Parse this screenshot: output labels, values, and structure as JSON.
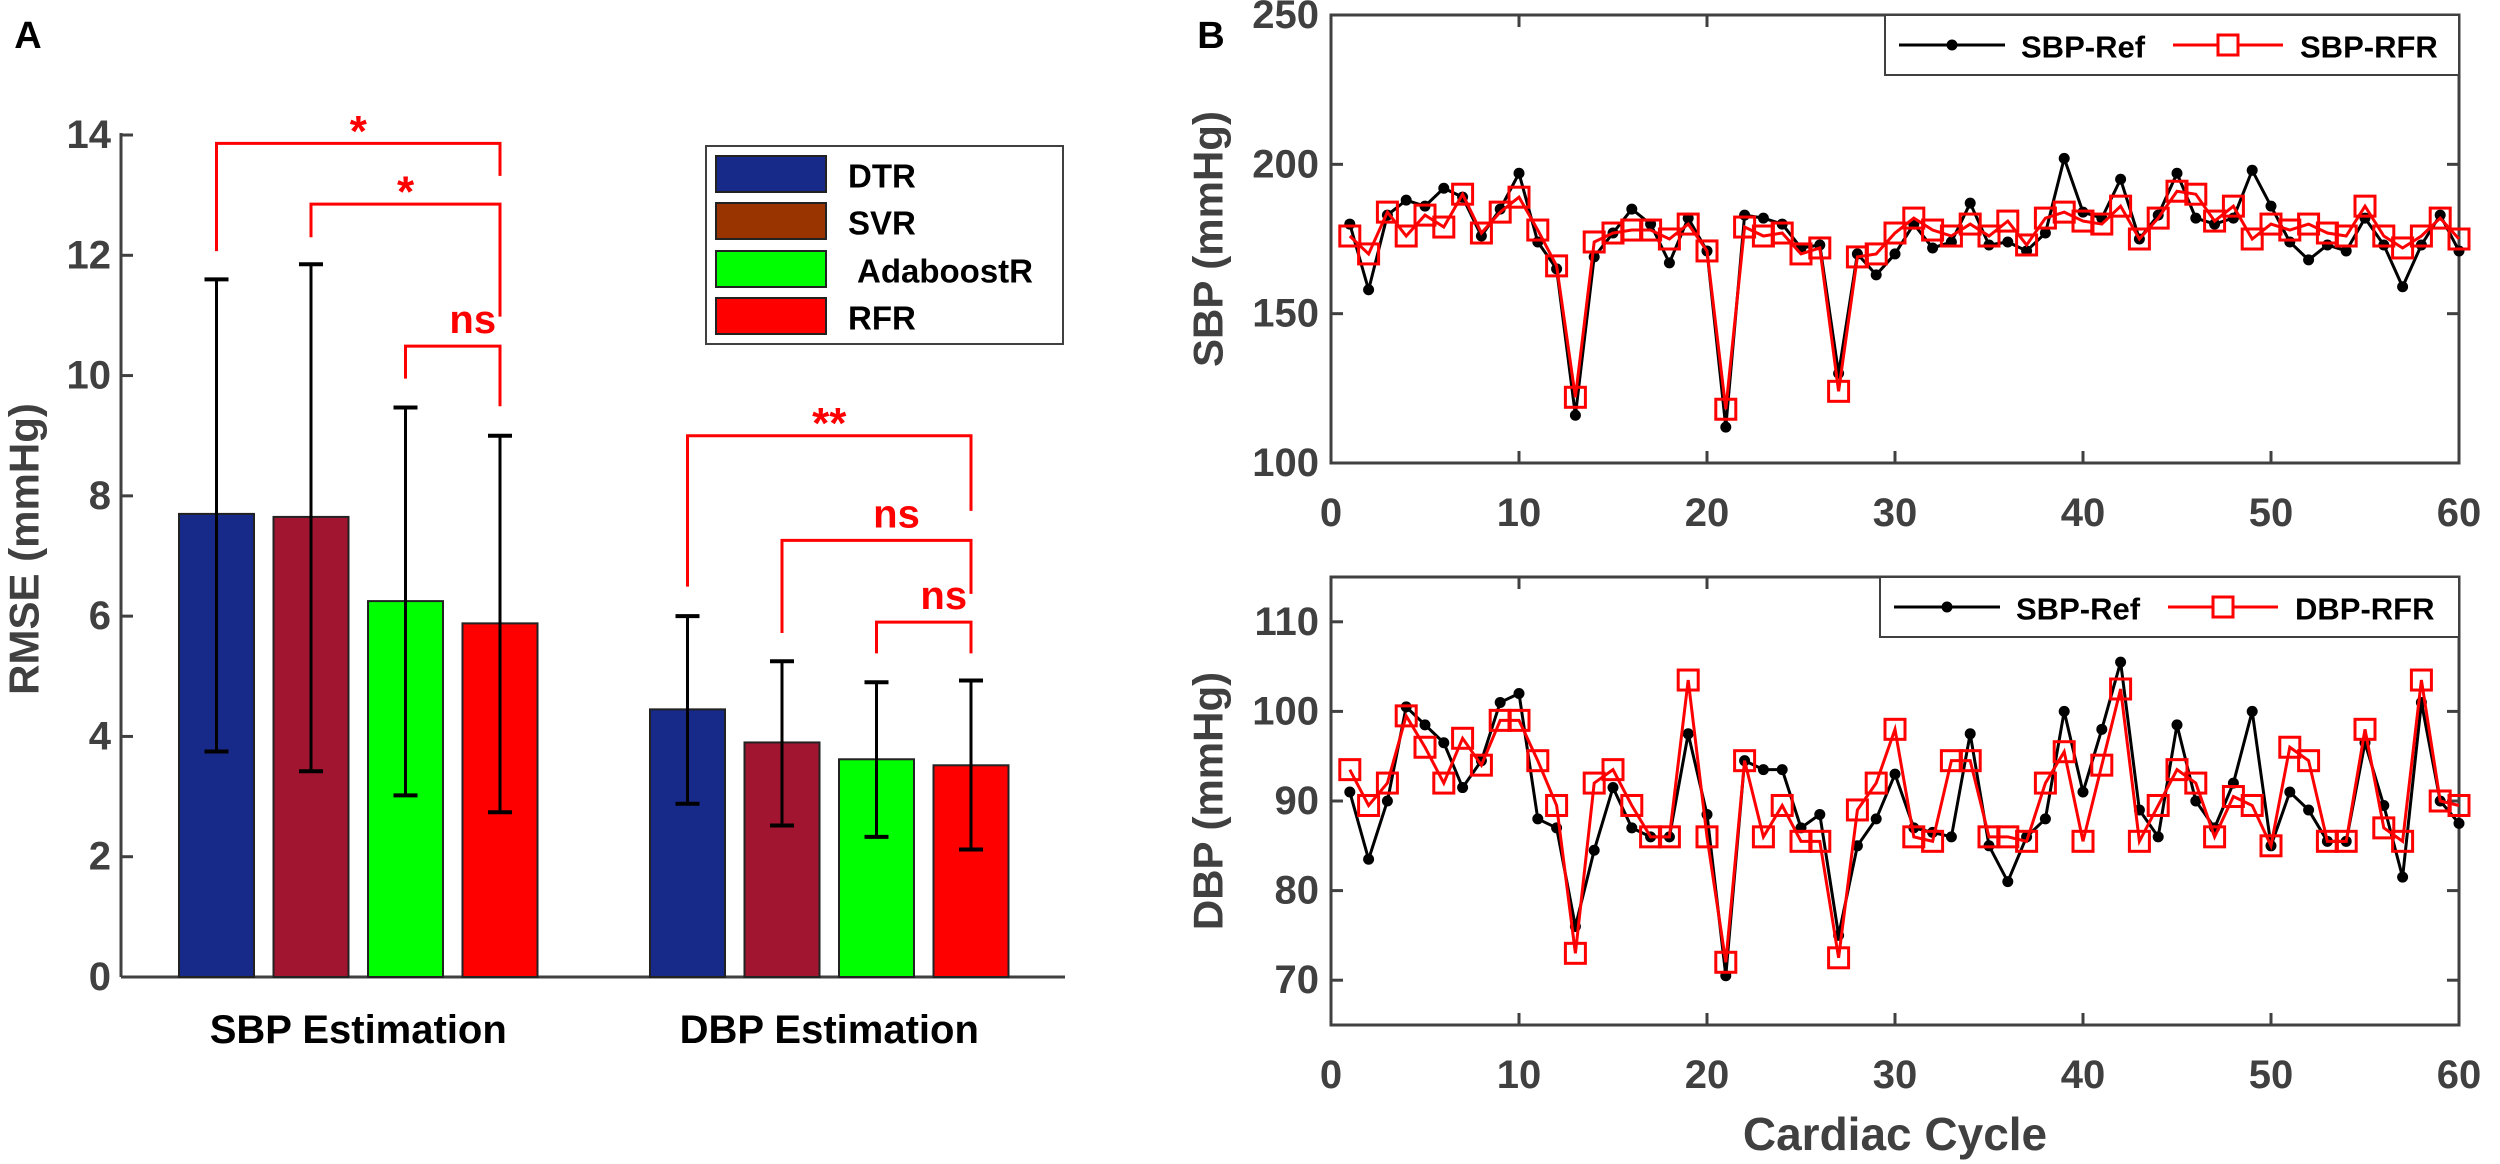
{
  "chart_data": [
    {
      "panel_label": "A",
      "type": "bar",
      "ylabel": "RMSE (mmHg)",
      "xlabel": "",
      "ylim": [
        0,
        14
      ],
      "yticks": [
        0,
        2,
        4,
        6,
        8,
        10,
        12,
        14
      ],
      "categories": [
        "SBP Estimation",
        "DBP Estimation"
      ],
      "legend_position": "top-right",
      "series": [
        {
          "name": "DTR",
          "color": "#172a8a",
          "legend_color": "#172a8a",
          "values": [
            7.7,
            4.45
          ],
          "err_low": [
            3.75,
            2.88
          ],
          "err_high": [
            11.6,
            6.0
          ]
        },
        {
          "name": "SVR",
          "color": "#a21530",
          "legend_color": "#993300",
          "values": [
            7.65,
            3.9
          ],
          "err_low": [
            3.42,
            2.52
          ],
          "err_high": [
            11.85,
            5.25
          ]
        },
        {
          "name": "AdaboostR",
          "color": "#00ff00",
          "legend_color": "#00ff00",
          "values": [
            6.25,
            3.62
          ],
          "err_low": [
            3.02,
            2.33
          ],
          "err_high": [
            9.47,
            4.9
          ]
        },
        {
          "name": "RFR",
          "color": "#ff0000",
          "legend_color": "#ff0000",
          "values": [
            5.88,
            3.52
          ],
          "err_low": [
            2.74,
            2.12
          ],
          "err_high": [
            9.0,
            4.93
          ]
        }
      ],
      "significance": [
        {
          "group": 0,
          "from": 0,
          "to": 3,
          "label": "*",
          "top": 13.86,
          "left_end": 12.07,
          "right_end": 13.32
        },
        {
          "group": 0,
          "from": 1,
          "to": 3,
          "label": "*",
          "top": 12.85,
          "left_end": 12.3,
          "right_end": 10.98
        },
        {
          "group": 0,
          "from": 2,
          "to": 3,
          "label": "ns",
          "top": 10.49,
          "left_end": 9.95,
          "right_end": 9.49
        },
        {
          "group": 1,
          "from": 0,
          "to": 3,
          "label": "**",
          "top": 9.0,
          "left_end": 6.49,
          "right_end": 7.75
        },
        {
          "group": 1,
          "from": 1,
          "to": 3,
          "label": "ns",
          "top": 7.26,
          "left_end": 5.72,
          "right_end": 6.37
        },
        {
          "group": 1,
          "from": 2,
          "to": 3,
          "label": "ns",
          "top": 5.9,
          "left_end": 5.38,
          "right_end": 5.38
        }
      ]
    },
    {
      "panel_label": "B",
      "type": "line",
      "ylabel": "SBP (mmHg)",
      "xlabel": "",
      "xlim": [
        0,
        60
      ],
      "ylim": [
        100,
        250
      ],
      "xticks": [
        0,
        10,
        20,
        30,
        40,
        50,
        60
      ],
      "yticks": [
        100,
        150,
        200,
        250
      ],
      "legend_position": "top-right",
      "x_start": 1,
      "series": [
        {
          "name": "SBP-Ref",
          "color": "#000000",
          "marker": "dot",
          "values": [
            180,
            158,
            183,
            188,
            186,
            192,
            189,
            176,
            185,
            197,
            174,
            165,
            116,
            169,
            177,
            185,
            180,
            167,
            182,
            171,
            112,
            183,
            182,
            180,
            172,
            173,
            130,
            170,
            163,
            170,
            180,
            172,
            174,
            187,
            173,
            174,
            171,
            177,
            202,
            184,
            182,
            195,
            175,
            183,
            197,
            182,
            180,
            182,
            198,
            186,
            174,
            168,
            173,
            171,
            182,
            173,
            159,
            173,
            183,
            171
          ]
        },
        {
          "name": "SBP-RFR",
          "color": "#ff0000",
          "marker": "square",
          "values": [
            176,
            170,
            184,
            176,
            183,
            179,
            190,
            177,
            184,
            189,
            178,
            166,
            122,
            174,
            177,
            178,
            178,
            175,
            180,
            171,
            118,
            179,
            176,
            177,
            170,
            172,
            124,
            169,
            170,
            177,
            182,
            178,
            176,
            180,
            176,
            181,
            173,
            182,
            184,
            181,
            180,
            186,
            175,
            182,
            191,
            190,
            181,
            186,
            175,
            180,
            178,
            180,
            177,
            176,
            186,
            176,
            172,
            176,
            182,
            175
          ]
        }
      ]
    },
    {
      "panel_label": "",
      "type": "line",
      "ylabel": "DBP (mmHg)",
      "xlabel": "Cardiac Cycle",
      "xlim": [
        0,
        60
      ],
      "ylim": [
        65,
        115
      ],
      "xticks": [
        0,
        10,
        20,
        30,
        40,
        50,
        60
      ],
      "yticks": [
        70,
        80,
        90,
        100,
        110
      ],
      "legend_position": "top-right",
      "x_start": 1,
      "series": [
        {
          "name": "SBP-Ref",
          "color": "#000000",
          "marker": "dot",
          "values": [
            91,
            83.5,
            90,
            100.5,
            98.5,
            96.5,
            91.5,
            94.5,
            101,
            102,
            88,
            87,
            76,
            84.5,
            91.5,
            87,
            86,
            86,
            97.5,
            88.5,
            70.5,
            94.5,
            93.5,
            93.5,
            87,
            88.5,
            75,
            85,
            88,
            93,
            87,
            86.5,
            86,
            97.5,
            85,
            81,
            86,
            88,
            100,
            91,
            98,
            105.5,
            89,
            86,
            98.5,
            90,
            87,
            92,
            100,
            85,
            91,
            89,
            85.5,
            85.5,
            96.5,
            89.5,
            81.5,
            101,
            90,
            87.5
          ]
        },
        {
          "name": "DBP-RFR",
          "color": "#ff0000",
          "marker": "square",
          "values": [
            93.5,
            89.5,
            92,
            99.5,
            96,
            92,
            97,
            94,
            99,
            99,
            94.5,
            89.5,
            73,
            92,
            93.5,
            89.5,
            86,
            86,
            103.5,
            86,
            72,
            94.5,
            86,
            89.5,
            85.5,
            85.5,
            72.5,
            89,
            92,
            98,
            86,
            85.5,
            94.5,
            94.5,
            86,
            86,
            85.5,
            92,
            95.5,
            85.5,
            94,
            102.5,
            85.5,
            89.5,
            93.5,
            92,
            86,
            90.5,
            89.5,
            85,
            96,
            94.5,
            85.5,
            85.5,
            98,
            87,
            85.5,
            103.5,
            90,
            89.5
          ]
        }
      ]
    }
  ]
}
